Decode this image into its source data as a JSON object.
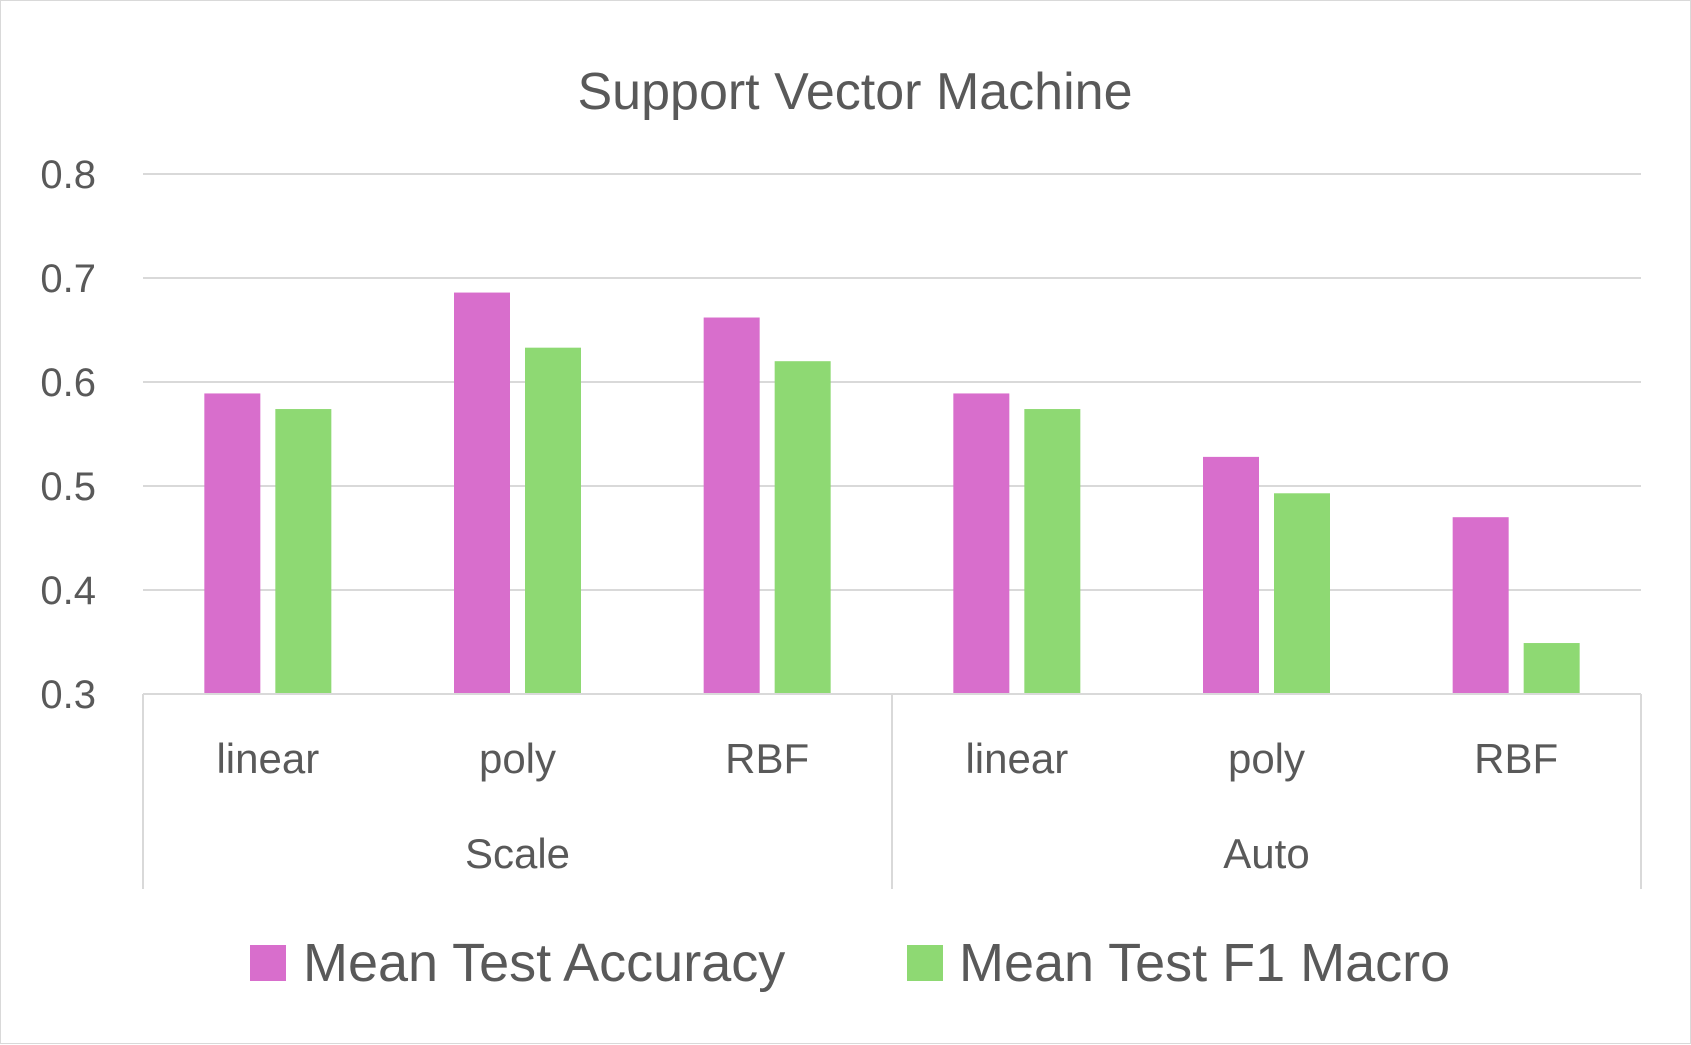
{
  "chart_data": {
    "type": "bar",
    "title": "Support Vector Machine",
    "xlabel": "",
    "ylabel": "",
    "ylim": [
      0.3,
      0.8
    ],
    "yticks": [
      "0.3",
      "0.4",
      "0.5",
      "0.6",
      "0.7",
      "0.8"
    ],
    "grid": true,
    "legend_position": "bottom",
    "groups": [
      {
        "label": "Scale",
        "categories": [
          "linear",
          "poly",
          "RBF"
        ]
      },
      {
        "label": "Auto",
        "categories": [
          "linear",
          "poly",
          "RBF"
        ]
      }
    ],
    "categories": [
      "linear",
      "poly",
      "RBF",
      "linear",
      "poly",
      "RBF"
    ],
    "series": [
      {
        "name": "Mean Test Accuracy",
        "color": "#d86ecc",
        "values": [
          0.589,
          0.686,
          0.662,
          0.589,
          0.528,
          0.47
        ]
      },
      {
        "name": "Mean Test F1 Macro",
        "color": "#8ed973",
        "values": [
          0.574,
          0.633,
          0.62,
          0.574,
          0.493,
          0.349
        ]
      }
    ]
  }
}
